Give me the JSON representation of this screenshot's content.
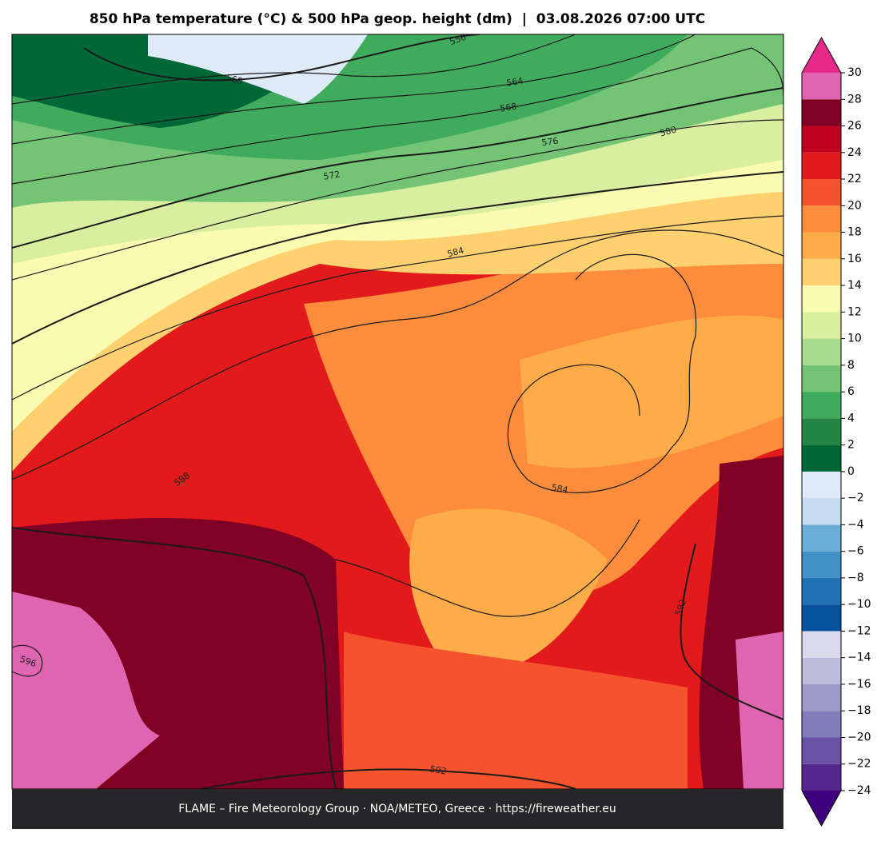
{
  "title": "850 hPa temperature (°C) & 500 hPa geop. height (dm)  |  03.08.2026 07:00 UTC",
  "footer": "FLAME – Fire Meteorology Group · NOA/METEO, Greece · https://fireweather.eu",
  "contour_labels": [
    "556",
    "560",
    "564",
    "568",
    "576",
    "580",
    "572",
    "584",
    "588",
    "584",
    "592",
    "596",
    "592"
  ],
  "colorbar": {
    "ticks": [
      {
        "value": -24,
        "label": "−24"
      },
      {
        "value": -22,
        "label": "−22"
      },
      {
        "value": -20,
        "label": "−20"
      },
      {
        "value": -18,
        "label": "−18"
      },
      {
        "value": -16,
        "label": "−16"
      },
      {
        "value": -14,
        "label": "−14"
      },
      {
        "value": -12,
        "label": "−12"
      },
      {
        "value": -10,
        "label": "−10"
      },
      {
        "value": -8,
        "label": "−8"
      },
      {
        "value": -6,
        "label": "−6"
      },
      {
        "value": -4,
        "label": "−4"
      },
      {
        "value": -2,
        "label": "−2"
      },
      0,
      2,
      4,
      6,
      8,
      10,
      12,
      14,
      16,
      18,
      20,
      22,
      24,
      26,
      28,
      30
    ],
    "colors": [
      "#54278f",
      "#6a51a3",
      "#807dba",
      "#9e9ac8",
      "#bcbddc",
      "#dadaeb",
      "#08519c",
      "#2171b5",
      "#4292c6",
      "#6baed6",
      "#c6dbef",
      "#deebf7",
      "#006837",
      "#238443",
      "#41ab5d",
      "#74c476",
      "#a8db8e",
      "#d9efa0",
      "#fafab0",
      "#fed06f",
      "#feab4a",
      "#fd8d3c",
      "#f4532e",
      "#e31a1c",
      "#c0001f",
      "#800026",
      "#df65b0"
    ],
    "under_color": "#3f007d",
    "over_color": "#e7298a"
  }
}
